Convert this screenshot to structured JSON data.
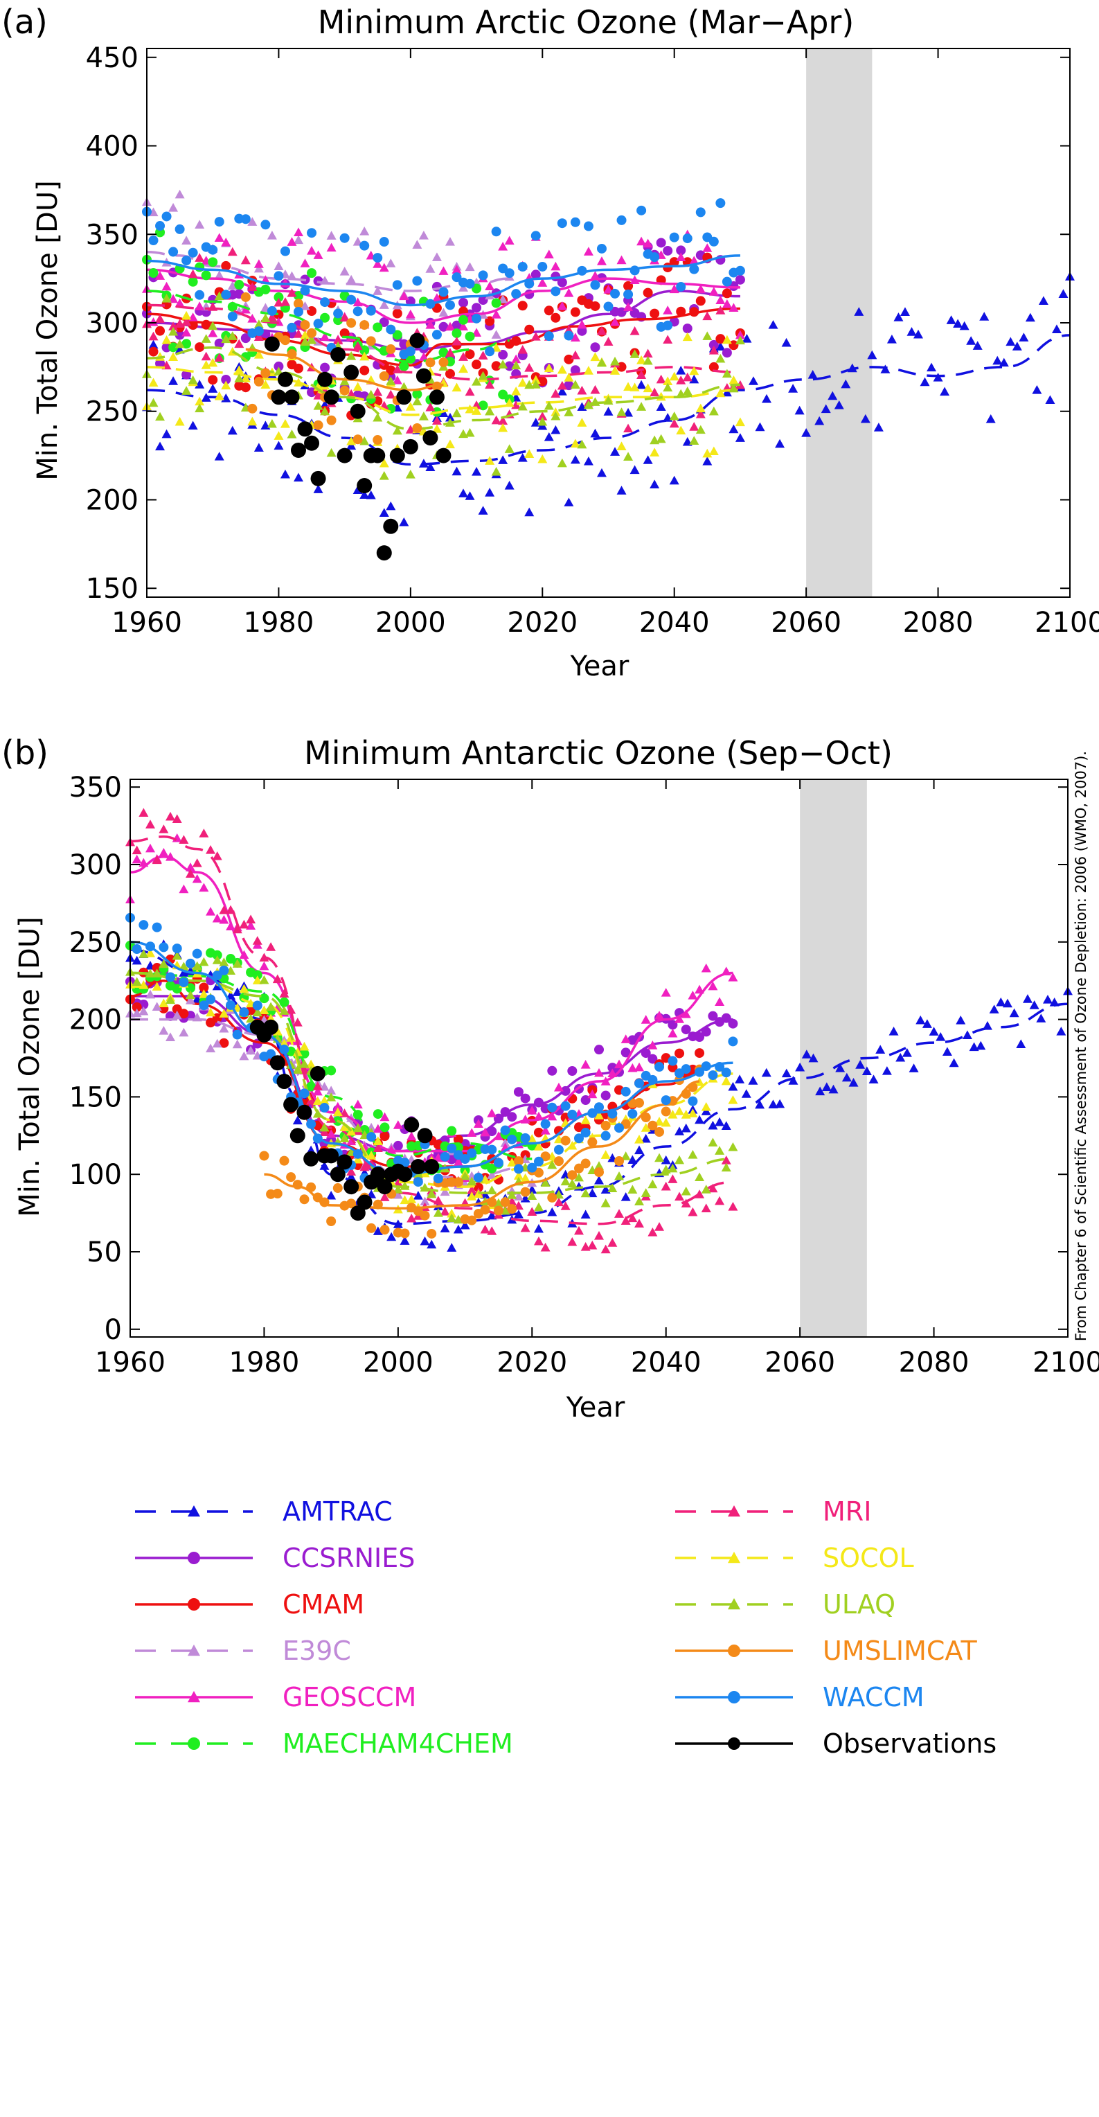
{
  "credit": "From Chapter 6 of Scientific Assessment of Ozone Depletion: 2006 (WMO, 2007).",
  "legend": [
    {
      "name": "AMTRAC",
      "color": "#1010e0",
      "marker": "triangle",
      "dash": true
    },
    {
      "name": "CCSRNIES",
      "color": "#9a1cd0",
      "marker": "circle",
      "dash": false
    },
    {
      "name": "CMAM",
      "color": "#ee1010",
      "marker": "circle",
      "dash": false
    },
    {
      "name": "E39C",
      "color": "#c08ad8",
      "marker": "triangle",
      "dash": true
    },
    {
      "name": "GEOSCCM",
      "color": "#f020c0",
      "marker": "triangle",
      "dash": false
    },
    {
      "name": "MAECHAM4CHEM",
      "color": "#20ee20",
      "marker": "circle",
      "dash": true
    },
    {
      "name": "MRI",
      "color": "#f0207a",
      "marker": "triangle",
      "dash": true
    },
    {
      "name": "SOCOL",
      "color": "#f4e818",
      "marker": "triangle",
      "dash": true
    },
    {
      "name": "ULAQ",
      "color": "#a0d020",
      "marker": "triangle",
      "dash": true
    },
    {
      "name": "UMSLIMCAT",
      "color": "#f48a18",
      "marker": "circle",
      "dash": false
    },
    {
      "name": "WACCM",
      "color": "#1c86f0",
      "marker": "circle",
      "dash": false
    },
    {
      "name": "Observations",
      "color": "#000000",
      "marker": "bigcircle",
      "dash": false
    }
  ],
  "chart_data": [
    {
      "panel": "(a)",
      "type": "scatter",
      "title": "Minimum Arctic Ozone (Mar−Apr)",
      "xlabel": "Year",
      "ylabel": "Min. Total Ozone [DU]",
      "xlim": [
        1960,
        2100
      ],
      "ylim": [
        145,
        455
      ],
      "xticks": [
        1960,
        1980,
        2000,
        2020,
        2040,
        2060,
        2080,
        2100
      ],
      "yticks": [
        150,
        200,
        250,
        300,
        350,
        400,
        450
      ],
      "shaded_band": [
        2060,
        2070
      ],
      "series": [
        {
          "name": "AMTRAC",
          "x": [
            1960,
            1970,
            1980,
            1990,
            2000,
            2010,
            2020,
            2030,
            2040,
            2050,
            2060,
            2070,
            2080,
            2090,
            2100
          ],
          "y": [
            262,
            258,
            248,
            235,
            220,
            222,
            228,
            235,
            245,
            262,
            268,
            275,
            270,
            275,
            293
          ]
        },
        {
          "name": "CCSRNIES",
          "x": [
            1960,
            1975,
            1990,
            2000,
            2010,
            2020,
            2030,
            2040,
            2050
          ],
          "y": [
            300,
            296,
            290,
            285,
            288,
            295,
            305,
            318,
            315
          ]
        },
        {
          "name": "CMAM",
          "x": [
            1960,
            1970,
            1980,
            1990,
            2000,
            2005,
            2015,
            2025,
            2035,
            2050
          ],
          "y": [
            305,
            300,
            290,
            282,
            276,
            288,
            288,
            298,
            302,
            308
          ]
        },
        {
          "name": "E39C",
          "x": [
            1960,
            1965,
            1970,
            1980,
            1990,
            2000,
            2010,
            2015
          ],
          "y": [
            340,
            338,
            332,
            325,
            322,
            318,
            322,
            325
          ]
        },
        {
          "name": "GEOSCCM",
          "x": [
            1960,
            1970,
            1980,
            1990,
            2000,
            2010,
            2020,
            2030,
            2040,
            2050
          ],
          "y": [
            330,
            325,
            318,
            312,
            300,
            305,
            318,
            325,
            322,
            320
          ]
        },
        {
          "name": "MAECHAM4CHEM",
          "x": [
            1960,
            1970,
            1980,
            1990,
            2000,
            2010,
            2015
          ],
          "y": [
            318,
            312,
            305,
            292,
            278,
            285,
            290
          ]
        },
        {
          "name": "MRI",
          "x": [
            1960,
            1970,
            1980,
            1990,
            2000,
            2010,
            2020,
            2030,
            2040,
            2050
          ],
          "y": [
            310,
            308,
            300,
            285,
            272,
            268,
            270,
            272,
            275,
            272
          ]
        },
        {
          "name": "SOCOL",
          "x": [
            1960,
            1970,
            1980,
            1990,
            2000,
            2010,
            2020,
            2030,
            2040,
            2050
          ],
          "y": [
            275,
            272,
            268,
            258,
            248,
            252,
            255,
            258,
            258,
            262
          ]
        },
        {
          "name": "ULAQ",
          "x": [
            1960,
            1970,
            1980,
            1990,
            2000,
            2010,
            2020,
            2030,
            2040,
            2050
          ],
          "y": [
            280,
            286,
            272,
            258,
            240,
            245,
            250,
            255,
            258,
            265
          ]
        },
        {
          "name": "UMSLIMCAT",
          "x": [
            1975,
            1980,
            1990,
            2000,
            2005
          ],
          "y": [
            285,
            282,
            268,
            262,
            265
          ]
        },
        {
          "name": "WACCM",
          "x": [
            1960,
            1970,
            1980,
            1990,
            2000,
            2010,
            2020,
            2030,
            2040,
            2050
          ],
          "y": [
            335,
            330,
            322,
            318,
            310,
            315,
            325,
            330,
            332,
            338
          ]
        },
        {
          "name": "Observations",
          "x": [
            1979,
            1980,
            1981,
            1982,
            1983,
            1984,
            1985,
            1986,
            1987,
            1988,
            1989,
            1990,
            1991,
            1992,
            1993,
            1994,
            1995,
            1996,
            1997,
            1998,
            1999,
            2000,
            2001,
            2002,
            2003,
            2004,
            2005
          ],
          "y": [
            288,
            258,
            268,
            258,
            228,
            240,
            232,
            212,
            268,
            258,
            282,
            225,
            272,
            250,
            208,
            225,
            225,
            170,
            185,
            225,
            258,
            230,
            290,
            270,
            235,
            258,
            225
          ]
        }
      ]
    },
    {
      "panel": "(b)",
      "type": "scatter",
      "title": "Minimum Antarctic Ozone (Sep−Oct)",
      "xlabel": "Year",
      "ylabel": "Min. Total Ozone [DU]",
      "xlim": [
        1960,
        2100
      ],
      "ylim": [
        -5,
        355
      ],
      "xticks": [
        1960,
        1980,
        2000,
        2020,
        2040,
        2060,
        2080,
        2100
      ],
      "yticks": [
        0,
        50,
        100,
        150,
        200,
        250,
        300,
        350
      ],
      "shaded_band": [
        2060,
        2070
      ],
      "series": [
        {
          "name": "AMTRAC",
          "x": [
            1960,
            1970,
            1980,
            1985,
            1990,
            2000,
            2010,
            2020,
            2030,
            2040,
            2050,
            2060,
            2070,
            2080,
            2090,
            2100
          ],
          "y": [
            245,
            230,
            200,
            150,
            100,
            68,
            70,
            75,
            92,
            118,
            142,
            162,
            175,
            185,
            195,
            210
          ]
        },
        {
          "name": "CCSRNIES",
          "x": [
            1960,
            1970,
            1980,
            1990,
            2000,
            2010,
            2020,
            2030,
            2040,
            2050
          ],
          "y": [
            215,
            215,
            190,
            125,
            115,
            125,
            145,
            165,
            185,
            200
          ]
        },
        {
          "name": "CMAM",
          "x": [
            1960,
            1965,
            1970,
            1980,
            1990,
            2000,
            2010,
            2020,
            2030,
            2040,
            2045
          ],
          "y": [
            215,
            225,
            210,
            185,
            120,
            105,
            105,
            120,
            140,
            158,
            165
          ]
        },
        {
          "name": "E39C",
          "x": [
            1960,
            1965,
            1970,
            1980,
            1990,
            2000,
            2010,
            2020
          ],
          "y": [
            200,
            200,
            200,
            190,
            140,
            100,
            98,
            105
          ]
        },
        {
          "name": "GEOSCCM",
          "x": [
            1960,
            1965,
            1970,
            1980,
            1990,
            2000,
            2010,
            2020,
            2030,
            2040,
            2050
          ],
          "y": [
            295,
            305,
            295,
            230,
            140,
            115,
            115,
            135,
            160,
            200,
            230
          ]
        },
        {
          "name": "MAECHAM4CHEM",
          "x": [
            1960,
            1970,
            1980,
            1990,
            2000,
            2010,
            2020
          ],
          "y": [
            230,
            228,
            218,
            150,
            112,
            120,
            110
          ]
        },
        {
          "name": "MRI",
          "x": [
            1960,
            1965,
            1970,
            1980,
            1990,
            2000,
            2010,
            2020,
            2030,
            2040,
            2050
          ],
          "y": [
            315,
            318,
            310,
            240,
            130,
            88,
            78,
            70,
            68,
            80,
            95
          ]
        },
        {
          "name": "SOCOL",
          "x": [
            1960,
            1970,
            1980,
            1990,
            2000,
            2010,
            2020,
            2030,
            2040,
            2050
          ],
          "y": [
            230,
            225,
            210,
            135,
            95,
            92,
            105,
            125,
            145,
            165
          ]
        },
        {
          "name": "ULAQ",
          "x": [
            1960,
            1970,
            1980,
            1990,
            2000,
            2010,
            2020,
            2030,
            2040,
            2050
          ],
          "y": [
            230,
            225,
            215,
            135,
            92,
            88,
            88,
            92,
            100,
            110
          ]
        },
        {
          "name": "UMSLIMCAT",
          "x": [
            1980,
            1985,
            1990,
            2000,
            2010,
            2020,
            2030,
            2040,
            2045
          ],
          "y": [
            100,
            92,
            80,
            78,
            80,
            95,
            118,
            145,
            160
          ]
        },
        {
          "name": "WACCM",
          "x": [
            1960,
            1970,
            1980,
            1990,
            2000,
            2010,
            2020,
            2030,
            2040,
            2050
          ],
          "y": [
            250,
            230,
            190,
            120,
            100,
            105,
            120,
            140,
            160,
            172
          ]
        },
        {
          "name": "Observations",
          "x": [
            1979,
            1980,
            1981,
            1982,
            1983,
            1984,
            1985,
            1986,
            1987,
            1988,
            1989,
            1990,
            1991,
            1992,
            1993,
            1994,
            1995,
            1996,
            1997,
            1998,
            1999,
            2000,
            2001,
            2002,
            2003,
            2004,
            2005
          ],
          "y": [
            195,
            190,
            195,
            172,
            160,
            145,
            125,
            140,
            110,
            165,
            112,
            112,
            100,
            108,
            92,
            75,
            82,
            95,
            100,
            92,
            100,
            102,
            100,
            132,
            105,
            125,
            105
          ]
        }
      ]
    }
  ]
}
